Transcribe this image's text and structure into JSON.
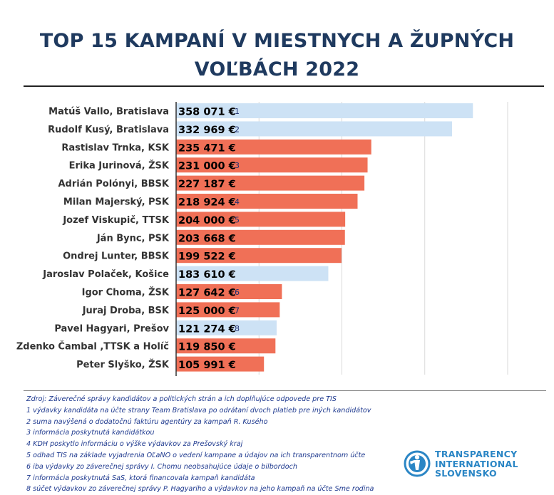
{
  "title_line1": "TOP 15 KAMPANÍ V MIESTNYCH A ŽUPNÝCH",
  "title_line2": "VOĽBÁCH 2022",
  "colors": {
    "red": "#f07057",
    "blue": "#cde2f5",
    "title": "#1f3a5f",
    "notes": "#1f3a8f",
    "logo": "#2b86c5"
  },
  "chart_data": {
    "type": "bar",
    "orientation": "horizontal",
    "xlim": [
      0,
      400000
    ],
    "gridlines": true,
    "categories": [
      "Matúš Vallo, Bratislava",
      "Rudolf Kusý, Bratislava",
      "Rastislav Trnka, KSK",
      "Erika Jurinová, ŽSK",
      "Adrián Polónyi, BBSK",
      "Milan Majerský, PSK",
      "Jozef Viskupič, TTSK",
      "Ján Bync, PSK",
      "Ondrej Lunter, BBSK",
      "Jaroslav Polaček, Košice",
      "Igor Choma, ŽSK",
      "Juraj Droba, BSK",
      "Pavel Hagyari, Prešov",
      "Zdenko Čambal  ,TTSK a Holíč",
      "Peter Slyško, ŽSK"
    ],
    "values": [
      358071,
      332969,
      235471,
      231000,
      227187,
      218924,
      204000,
      203668,
      199522,
      183610,
      127642,
      125000,
      121274,
      119850,
      105991
    ],
    "value_labels": [
      "358 071 €",
      "332 969 €",
      "235 471 €",
      "231 000 €",
      "227 187 €",
      "218 924 €",
      "204 000 €",
      "203 668 €",
      "199 522 €",
      "183 610 €",
      "127 642 €",
      "125 000 €",
      "121 274 €",
      "119 850 €",
      "105 991 €"
    ],
    "footnote_marks": [
      "1",
      "2",
      "",
      "3",
      "",
      "4",
      "5",
      "",
      "",
      "",
      "6",
      "7",
      "8",
      "",
      ""
    ],
    "bar_colors": [
      "blue",
      "blue",
      "red",
      "red",
      "red",
      "red",
      "red",
      "red",
      "red",
      "blue",
      "red",
      "red",
      "blue",
      "red",
      "red"
    ]
  },
  "notes": [
    "Zdroj: Záverečné správy kandidátov a politických strán a ich doplňujúce odpovede pre TIS",
    "1 výdavky kandidáta na účte strany Team Bratislava po odrátaní dvoch platieb pre iných kandidátov",
    "2  suma navýšená o dodatočnú faktúru agentúry za kampaň R. Kusého",
    "3 informácia poskytnutá kandidátkou",
    "4 KDH poskytlo informáciu o výške výdavkov za Prešovský kraj",
    "5 odhad TIS na základe vyjadrenia OĽaNO o vedení kampane a údajov na ich transparentnom účte",
    "6 iba výdavky zo záverečnej správy I. Chomu neobsahujúce údaje o bilbordoch",
    "7 informácia poskytnutá SaS, ktorá financovala kampaň kandidáta",
    "8 súčet výdavkov zo záverečnej správy P. Hagyariho a výdavkov na jeho kampaň na účte Sme rodina"
  ],
  "logo": {
    "line1": "TRANSPARENCY",
    "line2": "INTERNATIONAL",
    "line3": "SLOVENSKO",
    "icon": "ti-logo-icon"
  }
}
